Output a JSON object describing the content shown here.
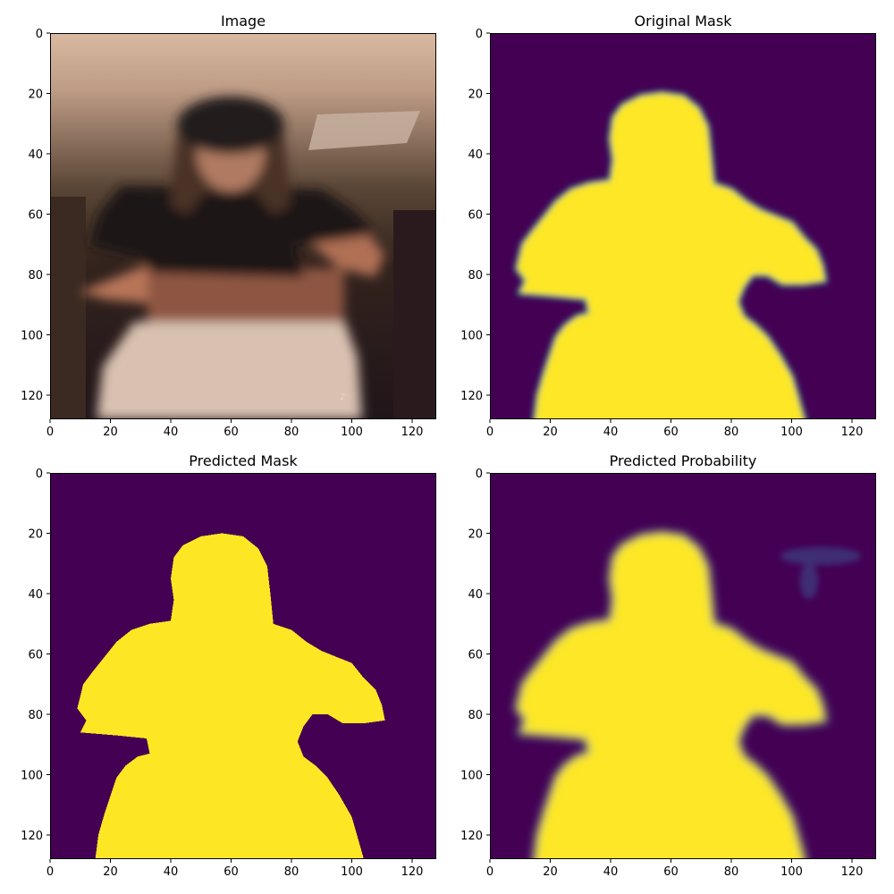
{
  "chart_data": [
    {
      "type": "heatmap",
      "title": "Image",
      "content": "photo",
      "xlim": [
        0,
        128
      ],
      "ylim": [
        128,
        0
      ],
      "xticks": [
        "0",
        "20",
        "40",
        "60",
        "80",
        "100",
        "120"
      ],
      "yticks": [
        "0",
        "20",
        "40",
        "60",
        "80",
        "100",
        "120"
      ]
    },
    {
      "type": "heatmap",
      "title": "Original Mask",
      "content": "soft-mask",
      "xlim": [
        0,
        128
      ],
      "ylim": [
        128,
        0
      ],
      "xticks": [
        "0",
        "20",
        "40",
        "60",
        "80",
        "100",
        "120"
      ],
      "yticks": [
        "0",
        "20",
        "40",
        "60",
        "80",
        "100",
        "120"
      ]
    },
    {
      "type": "heatmap",
      "title": "Predicted Mask",
      "content": "binary-mask",
      "xlim": [
        0,
        128
      ],
      "ylim": [
        128,
        0
      ],
      "xticks": [
        "0",
        "20",
        "40",
        "60",
        "80",
        "100",
        "120"
      ],
      "yticks": [
        "0",
        "20",
        "40",
        "60",
        "80",
        "100",
        "120"
      ]
    },
    {
      "type": "heatmap",
      "title": "Predicted Probability",
      "content": "probability",
      "xlim": [
        0,
        128
      ],
      "ylim": [
        128,
        0
      ],
      "xticks": [
        "0",
        "20",
        "40",
        "60",
        "80",
        "100",
        "120"
      ],
      "yticks": [
        "0",
        "20",
        "40",
        "60",
        "80",
        "100",
        "120"
      ]
    }
  ],
  "colors": {
    "background_class": "#440154",
    "foreground_class": "#fde725",
    "edge_mid": "#21918c"
  },
  "silhouette_outline": [
    [
      15,
      128
    ],
    [
      16,
      120
    ],
    [
      18,
      113
    ],
    [
      20,
      107
    ],
    [
      22,
      101
    ],
    [
      25,
      97
    ],
    [
      29,
      94
    ],
    [
      33,
      93
    ],
    [
      32,
      88
    ],
    [
      22,
      87
    ],
    [
      10,
      86
    ],
    [
      12,
      82
    ],
    [
      9,
      78
    ],
    [
      10,
      74
    ],
    [
      11,
      70
    ],
    [
      14,
      66
    ],
    [
      18,
      61
    ],
    [
      22,
      56
    ],
    [
      27,
      52
    ],
    [
      33,
      50
    ],
    [
      40,
      49
    ],
    [
      41,
      42
    ],
    [
      40,
      35
    ],
    [
      41,
      28
    ],
    [
      44,
      24
    ],
    [
      50,
      21
    ],
    [
      57,
      20
    ],
    [
      64,
      21
    ],
    [
      69,
      25
    ],
    [
      72,
      31
    ],
    [
      73,
      40
    ],
    [
      74,
      50
    ],
    [
      80,
      52
    ],
    [
      85,
      56
    ],
    [
      90,
      59
    ],
    [
      95,
      61
    ],
    [
      100,
      63
    ],
    [
      104,
      68
    ],
    [
      108,
      72
    ],
    [
      110,
      77
    ],
    [
      111,
      82
    ],
    [
      104,
      83
    ],
    [
      97,
      83
    ],
    [
      92,
      80
    ],
    [
      87,
      80
    ],
    [
      84,
      84
    ],
    [
      82,
      89
    ],
    [
      84,
      94
    ],
    [
      88,
      97
    ],
    [
      92,
      101
    ],
    [
      96,
      107
    ],
    [
      100,
      114
    ],
    [
      102,
      121
    ],
    [
      104,
      128
    ]
  ]
}
